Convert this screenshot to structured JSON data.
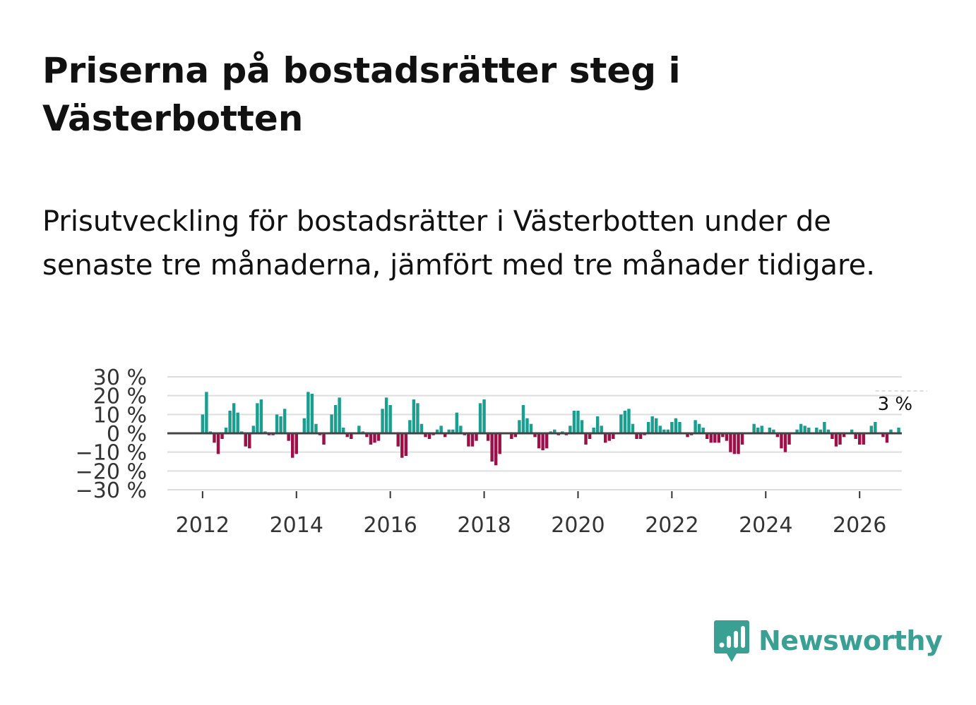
{
  "header": {
    "title": "Priserna på bostadsrätter steg i Västerbotten",
    "subtitle": "Prisutveckling för bostadsrätter i Västerbotten under de senaste tre månaderna, jämfört med tre månader tidigare."
  },
  "brand": {
    "name": "Newsworthy"
  },
  "colors": {
    "positive": "#1a9e8f",
    "negative": "#9c0f48",
    "zero_line": "#444444",
    "grid": "#dddddd",
    "brand": "#3aa093"
  },
  "chart_data": {
    "type": "bar",
    "title": "",
    "xlabel": "",
    "ylabel": "",
    "ylim": [
      -30,
      30
    ],
    "yticks": [
      30,
      20,
      10,
      0,
      -10,
      -20,
      -30
    ],
    "ytick_labels": [
      "30 %",
      "20 %",
      "10 %",
      "0 %",
      "−10 %",
      "−20 %",
      "−30 %"
    ],
    "xticks": [
      2012,
      2014,
      2016,
      2018,
      2020,
      2022,
      2024,
      2026
    ],
    "xtick_labels": [
      "2012",
      "2014",
      "2016",
      "2018",
      "2020",
      "2022",
      "2024",
      "2026"
    ],
    "xlim": [
      2011.25,
      2026.9
    ],
    "last_value_label": "3 %",
    "series": [
      {
        "name": "Prisutveckling",
        "start": 2012.0,
        "step_months": 1,
        "values": [
          10,
          22,
          1,
          -5,
          -11,
          -3,
          3,
          12,
          16,
          11,
          1,
          -7,
          -8,
          4,
          16,
          18,
          1,
          -1,
          -1,
          10,
          9,
          13,
          -4,
          -13,
          -11,
          0,
          8,
          22,
          21,
          5,
          -1,
          -6,
          0,
          10,
          15,
          19,
          3,
          -2,
          -3,
          0,
          4,
          1,
          -2,
          -6,
          -5,
          -4,
          13,
          19,
          15,
          0,
          -7,
          -13,
          -12,
          7,
          18,
          16,
          5,
          -2,
          -3,
          -1,
          2,
          4,
          -2,
          2,
          2,
          11,
          4,
          -1,
          -7,
          -7,
          -4,
          16,
          18,
          -4,
          -15,
          -17,
          -11,
          0,
          0,
          -3,
          -2,
          7,
          15,
          8,
          5,
          -2,
          -8,
          -9,
          -8,
          1,
          2,
          -1,
          1,
          -1,
          4,
          12,
          12,
          7,
          -6,
          -3,
          3,
          9,
          4,
          -5,
          -4,
          -3,
          0,
          10,
          12,
          13,
          5,
          -3,
          -3,
          -1,
          6,
          9,
          8,
          4,
          2,
          2,
          6,
          8,
          6,
          0,
          -2,
          -1,
          7,
          5,
          3,
          -3,
          -5,
          -5,
          -5,
          -2,
          -4,
          -10,
          -11,
          -11,
          -6,
          0,
          0,
          5,
          3,
          4,
          0,
          3,
          2,
          -2,
          -8,
          -10,
          -6,
          0,
          2,
          5,
          4,
          3,
          0,
          3,
          2,
          6,
          2,
          -3,
          -7,
          -6,
          -2,
          0,
          2,
          -3,
          -6,
          -6,
          0,
          4,
          6,
          0,
          -2,
          -5,
          2,
          0,
          3
        ]
      }
    ]
  }
}
